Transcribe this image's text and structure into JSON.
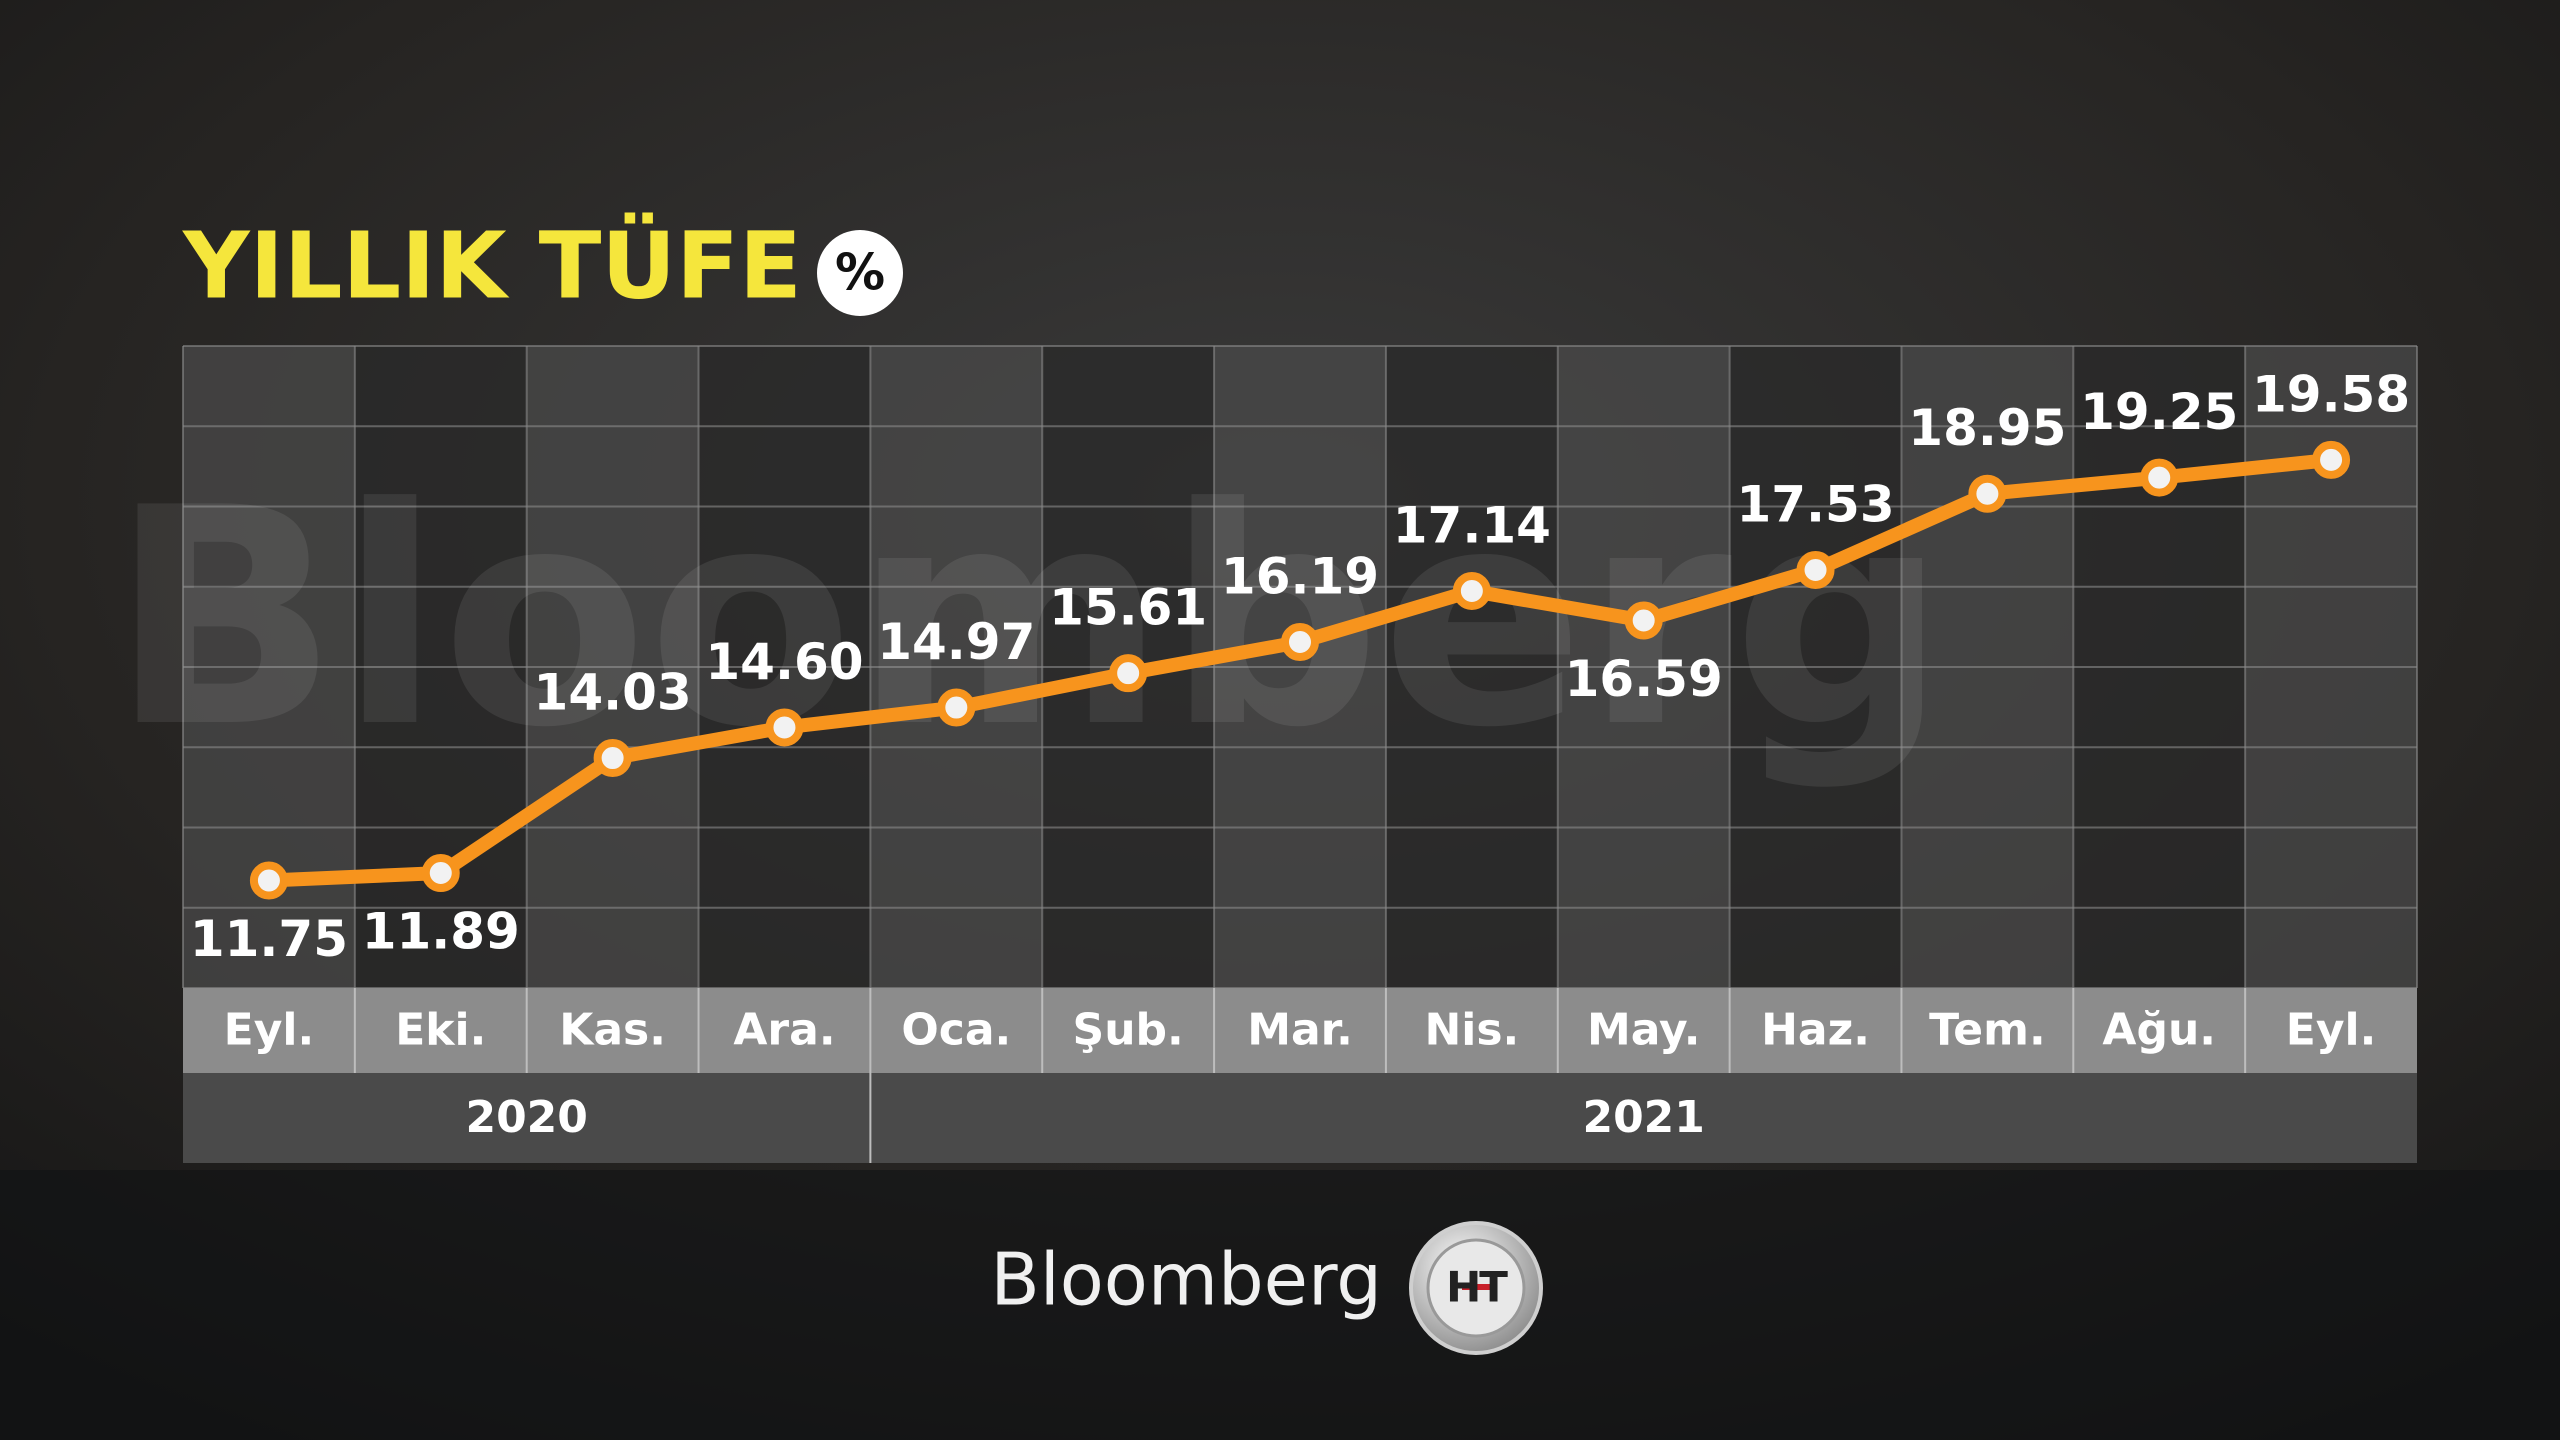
{
  "chart_data": {
    "type": "line",
    "title": "YILLIK TÜFE",
    "unit_badge": "%",
    "categories": [
      "Eyl.",
      "Eki.",
      "Kas.",
      "Ara.",
      "Oca.",
      "Şub.",
      "Mar.",
      "Nis.",
      "May.",
      "Haz.",
      "Tem.",
      "Ağu.",
      "Eyl."
    ],
    "groups": [
      {
        "label": "2020",
        "span": 4
      },
      {
        "label": "2021",
        "span": 9
      }
    ],
    "values": [
      11.75,
      11.89,
      14.03,
      14.6,
      14.97,
      15.61,
      16.19,
      17.14,
      16.59,
      17.53,
      18.95,
      19.25,
      19.58
    ],
    "value_labels": [
      "11.75",
      "11.89",
      "14.03",
      "14.60",
      "14.97",
      "15.61",
      "16.19",
      "17.14",
      "16.59",
      "17.53",
      "18.95",
      "19.25",
      "19.58"
    ],
    "color": "#f7941d",
    "ylim": [
      9.75,
      21.7
    ],
    "brand": "Bloomberg",
    "logo": "HT"
  }
}
